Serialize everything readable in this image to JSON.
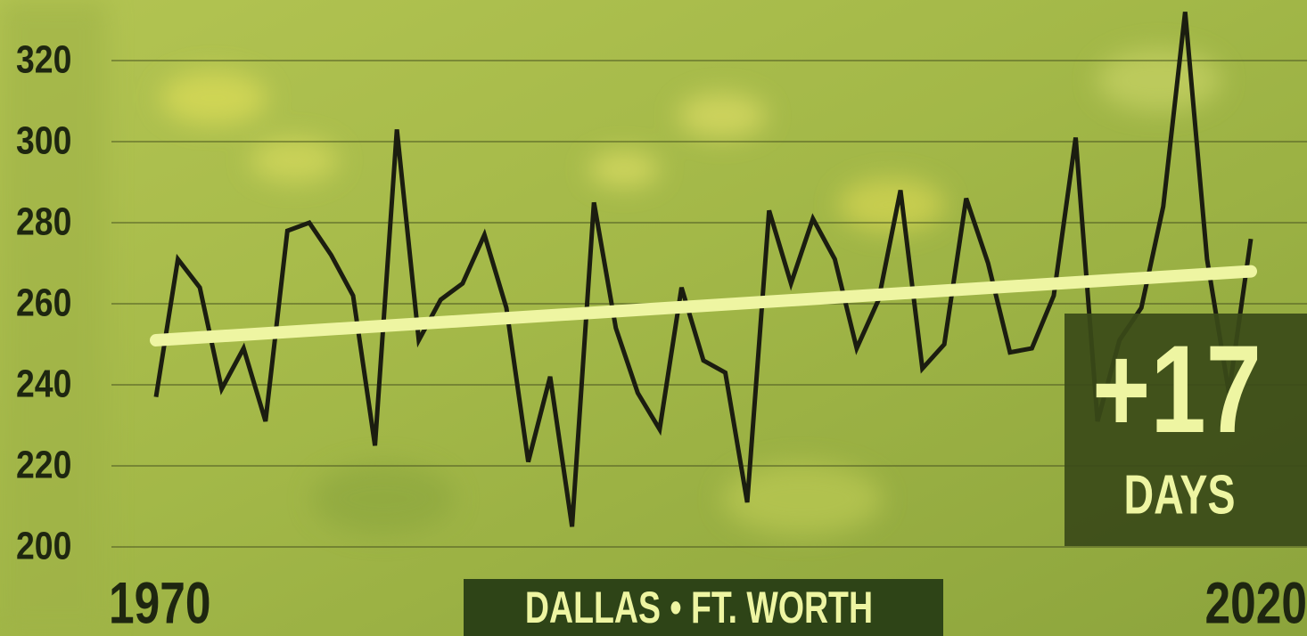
{
  "chart_data": {
    "type": "line",
    "label": "DALLAS • FT. WORTH",
    "annotation": {
      "value": "+17",
      "unit": "DAYS"
    },
    "x": [
      1970,
      1971,
      1972,
      1973,
      1974,
      1975,
      1976,
      1977,
      1978,
      1979,
      1980,
      1981,
      1982,
      1983,
      1984,
      1985,
      1986,
      1987,
      1988,
      1989,
      1990,
      1991,
      1992,
      1993,
      1994,
      1995,
      1996,
      1997,
      1998,
      1999,
      2000,
      2001,
      2002,
      2003,
      2004,
      2005,
      2006,
      2007,
      2008,
      2009,
      2010,
      2011,
      2012,
      2013,
      2014,
      2015,
      2016,
      2017,
      2018,
      2019,
      2020
    ],
    "series": [
      {
        "color": "#1b1d10",
        "values": [
          237,
          271,
          264,
          239,
          249,
          231,
          278,
          280,
          272,
          262,
          225,
          303,
          251,
          261,
          265,
          277,
          259,
          221,
          242,
          205,
          285,
          254,
          238,
          229,
          264,
          246,
          243,
          211,
          283,
          265,
          281,
          271,
          249,
          261,
          288,
          244,
          250,
          286,
          270,
          248,
          249,
          262,
          301,
          231,
          251,
          259,
          284,
          332,
          271,
          238,
          276
        ]
      }
    ],
    "trend": {
      "color": "#eef5a2",
      "x": [
        1970,
        2020
      ],
      "values": [
        251,
        268
      ]
    },
    "xlim": [
      1970,
      2020
    ],
    "xticks": [
      1970,
      2020
    ],
    "ylim": [
      200,
      320
    ],
    "yticks": [
      200,
      220,
      240,
      260,
      280,
      300,
      320
    ],
    "grid": true
  }
}
